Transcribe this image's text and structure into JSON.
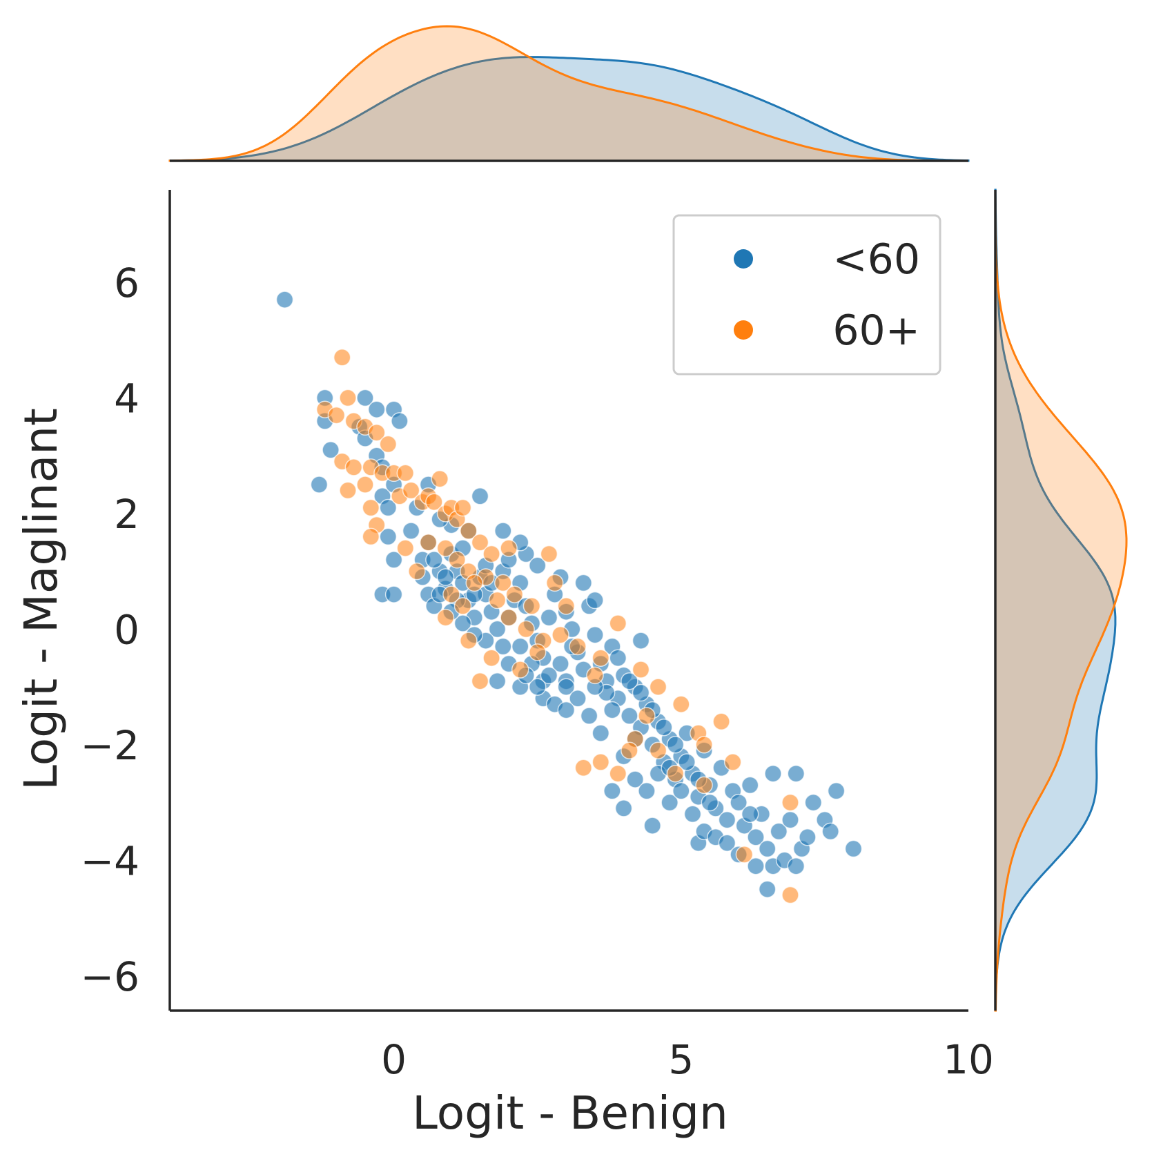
{
  "chart_data": {
    "type": "scatter",
    "subtype": "jointplot",
    "title": "",
    "xlabel": "Logit - Benign",
    "ylabel": "Logit - Maglinant",
    "xlim": [
      -3.9,
      10
    ],
    "ylim": [
      -6.6,
      7.6
    ],
    "xticks": [
      0,
      5,
      10
    ],
    "xtick_labels": [
      "0",
      "5",
      "10"
    ],
    "yticks": [
      6,
      4,
      2,
      0,
      -2,
      -4,
      -6
    ],
    "ytick_labels": [
      "6",
      "4",
      "2",
      "0",
      "−2",
      "−4",
      "−6"
    ],
    "grid": false,
    "legend": {
      "placement": "top-right",
      "entries": [
        "<60",
        "60+"
      ]
    },
    "marginal_x": "kde",
    "marginal_y": "kde",
    "series": [
      {
        "name": "<60",
        "color": "#1f77b4",
        "alpha": 0.6,
        "points": [
          [
            -1.9,
            5.7
          ],
          [
            -1.2,
            4.0
          ],
          [
            -1.2,
            3.6
          ],
          [
            -1.1,
            3.1
          ],
          [
            -1.3,
            2.5
          ],
          [
            -0.5,
            4.0
          ],
          [
            -0.3,
            3.8
          ],
          [
            0.0,
            3.8
          ],
          [
            0.1,
            3.6
          ],
          [
            -0.6,
            3.5
          ],
          [
            -0.5,
            3.3
          ],
          [
            -0.3,
            3.0
          ],
          [
            -0.2,
            2.8
          ],
          [
            -0.2,
            2.3
          ],
          [
            -0.1,
            2.1
          ],
          [
            0.0,
            2.5
          ],
          [
            -0.1,
            1.6
          ],
          [
            0.0,
            1.2
          ],
          [
            -0.2,
            0.6
          ],
          [
            0.0,
            0.6
          ],
          [
            0.3,
            1.7
          ],
          [
            0.4,
            2.1
          ],
          [
            0.6,
            2.5
          ],
          [
            1.5,
            2.3
          ],
          [
            1.9,
            1.7
          ],
          [
            2.3,
            1.3
          ],
          [
            0.5,
            1.2
          ],
          [
            0.5,
            0.9
          ],
          [
            0.6,
            0.6
          ],
          [
            0.7,
            0.4
          ],
          [
            0.8,
            1.0
          ],
          [
            0.9,
            0.7
          ],
          [
            1.0,
            1.3
          ],
          [
            1.1,
            1.0
          ],
          [
            1.2,
            0.8
          ],
          [
            1.3,
            0.5
          ],
          [
            1.4,
            0.2
          ],
          [
            1.1,
            0.5
          ],
          [
            1.2,
            1.4
          ],
          [
            1.3,
            1.7
          ],
          [
            1.0,
            1.8
          ],
          [
            0.8,
            1.9
          ],
          [
            0.6,
            1.5
          ],
          [
            0.7,
            1.2
          ],
          [
            0.9,
            0.9
          ],
          [
            1.5,
            0.9
          ],
          [
            1.6,
            0.6
          ],
          [
            1.7,
            0.3
          ],
          [
            1.8,
            0.0
          ],
          [
            1.9,
            -0.3
          ],
          [
            2.0,
            0.2
          ],
          [
            2.1,
            0.5
          ],
          [
            2.2,
            0.8
          ],
          [
            2.3,
            0.4
          ],
          [
            2.4,
            0.1
          ],
          [
            2.5,
            -0.2
          ],
          [
            2.6,
            -0.5
          ],
          [
            2.7,
            0.2
          ],
          [
            2.8,
            0.6
          ],
          [
            2.9,
            0.9
          ],
          [
            3.0,
            0.3
          ],
          [
            3.1,
            0.0
          ],
          [
            3.2,
            -0.4
          ],
          [
            3.3,
            -0.7
          ],
          [
            3.4,
            0.4
          ],
          [
            3.5,
            -0.1
          ],
          [
            3.6,
            -0.6
          ],
          [
            3.7,
            -0.9
          ],
          [
            3.8,
            -0.3
          ],
          [
            3.9,
            -1.2
          ],
          [
            4.0,
            -0.8
          ],
          [
            4.1,
            -1.5
          ],
          [
            4.2,
            -1.0
          ],
          [
            4.3,
            -1.7
          ],
          [
            4.4,
            -1.3
          ],
          [
            4.5,
            -2.0
          ],
          [
            4.6,
            -1.6
          ],
          [
            4.7,
            -2.3
          ],
          [
            4.8,
            -1.9
          ],
          [
            4.9,
            -2.6
          ],
          [
            5.0,
            -2.2
          ],
          [
            5.1,
            -1.8
          ],
          [
            5.2,
            -2.5
          ],
          [
            5.3,
            -2.9
          ],
          [
            5.4,
            -2.1
          ],
          [
            5.5,
            -2.7
          ],
          [
            5.6,
            -3.1
          ],
          [
            5.7,
            -2.4
          ],
          [
            5.8,
            -3.3
          ],
          [
            5.9,
            -2.8
          ],
          [
            6.0,
            -3.0
          ],
          [
            6.1,
            -3.4
          ],
          [
            6.2,
            -2.7
          ],
          [
            6.3,
            -3.6
          ],
          [
            6.4,
            -3.2
          ],
          [
            6.5,
            -3.8
          ],
          [
            6.6,
            -4.1
          ],
          [
            6.7,
            -3.5
          ],
          [
            6.8,
            -4.0
          ],
          [
            6.9,
            -3.3
          ],
          [
            7.0,
            -4.1
          ],
          [
            7.1,
            -3.8
          ],
          [
            7.2,
            -3.6
          ],
          [
            7.3,
            -3.0
          ],
          [
            7.5,
            -3.3
          ],
          [
            7.6,
            -3.5
          ],
          [
            7.7,
            -2.8
          ],
          [
            8.0,
            -3.8
          ],
          [
            6.5,
            -4.5
          ],
          [
            6.3,
            -4.1
          ],
          [
            7.0,
            -2.5
          ],
          [
            6.6,
            -2.5
          ],
          [
            5.3,
            -3.7
          ],
          [
            4.5,
            -3.4
          ],
          [
            4.0,
            -3.1
          ],
          [
            3.8,
            -2.8
          ],
          [
            4.3,
            -0.2
          ],
          [
            3.0,
            -0.9
          ],
          [
            2.6,
            -1.2
          ],
          [
            2.2,
            -1.0
          ],
          [
            2.0,
            -0.6
          ],
          [
            1.8,
            -0.9
          ],
          [
            1.6,
            -0.2
          ],
          [
            1.4,
            0.6
          ],
          [
            1.6,
            1.1
          ],
          [
            1.9,
            1.0
          ],
          [
            2.2,
            -0.3
          ],
          [
            2.4,
            -0.6
          ],
          [
            2.6,
            -0.9
          ],
          [
            2.8,
            -1.3
          ],
          [
            3.0,
            -1.0
          ],
          [
            3.2,
            -1.2
          ],
          [
            3.4,
            -1.5
          ],
          [
            3.6,
            -1.8
          ],
          [
            3.8,
            -1.4
          ],
          [
            4.0,
            -2.2
          ],
          [
            4.2,
            -2.6
          ],
          [
            4.4,
            -2.8
          ],
          [
            4.6,
            -2.5
          ],
          [
            4.8,
            -3.0
          ],
          [
            5.0,
            -2.8
          ],
          [
            5.2,
            -3.2
          ],
          [
            5.4,
            -3.5
          ],
          [
            5.6,
            -3.6
          ],
          [
            5.8,
            -3.7
          ],
          [
            6.0,
            -3.9
          ],
          [
            3.3,
            0.8
          ],
          [
            3.5,
            0.5
          ],
          [
            3.1,
            -0.3
          ],
          [
            2.9,
            -0.6
          ],
          [
            2.7,
            -0.8
          ],
          [
            2.5,
            -1.0
          ],
          [
            3.9,
            -0.5
          ],
          [
            4.1,
            -0.9
          ],
          [
            4.3,
            -1.1
          ],
          [
            4.5,
            -1.4
          ],
          [
            4.7,
            -1.7
          ],
          [
            4.9,
            -2.0
          ],
          [
            5.1,
            -2.3
          ],
          [
            5.3,
            -2.6
          ],
          [
            1.2,
            0.1
          ],
          [
            1.4,
            -0.1
          ],
          [
            1.7,
            0.8
          ],
          [
            2.0,
            1.2
          ],
          [
            2.2,
            1.5
          ],
          [
            2.5,
            1.1
          ],
          [
            1.0,
            0.3
          ],
          [
            0.8,
            0.6
          ],
          [
            2.3,
            -0.8
          ],
          [
            3.7,
            -1.1
          ],
          [
            4.8,
            -2.4
          ],
          [
            5.5,
            -3.0
          ],
          [
            6.2,
            -3.2
          ],
          [
            3.5,
            -1.0
          ],
          [
            3.0,
            -1.4
          ],
          [
            4.2,
            -1.9
          ]
        ]
      },
      {
        "name": "60+",
        "color": "#ff7f0e",
        "alpha": 0.55,
        "points": [
          [
            -0.9,
            4.7
          ],
          [
            -1.2,
            3.8
          ],
          [
            -1.0,
            3.7
          ],
          [
            -0.8,
            4.0
          ],
          [
            -0.7,
            3.6
          ],
          [
            -0.5,
            3.5
          ],
          [
            -0.3,
            3.4
          ],
          [
            -0.1,
            3.2
          ],
          [
            -0.9,
            2.9
          ],
          [
            -0.7,
            2.8
          ],
          [
            -0.4,
            2.8
          ],
          [
            -0.2,
            2.7
          ],
          [
            0.0,
            2.7
          ],
          [
            0.2,
            2.7
          ],
          [
            -0.8,
            2.4
          ],
          [
            -0.5,
            2.5
          ],
          [
            -0.4,
            2.1
          ],
          [
            -0.3,
            1.8
          ],
          [
            -0.4,
            1.6
          ],
          [
            0.1,
            2.3
          ],
          [
            0.3,
            2.4
          ],
          [
            0.5,
            2.2
          ],
          [
            0.6,
            2.3
          ],
          [
            0.7,
            2.2
          ],
          [
            0.8,
            2.6
          ],
          [
            0.9,
            2.0
          ],
          [
            1.0,
            2.1
          ],
          [
            1.1,
            1.9
          ],
          [
            1.3,
            1.7
          ],
          [
            1.5,
            1.5
          ],
          [
            1.7,
            1.3
          ],
          [
            0.2,
            1.4
          ],
          [
            0.4,
            1.0
          ],
          [
            0.6,
            1.5
          ],
          [
            0.9,
            1.4
          ],
          [
            1.1,
            1.2
          ],
          [
            1.3,
            1.0
          ],
          [
            1.6,
            0.9
          ],
          [
            1.9,
            0.8
          ],
          [
            2.1,
            0.6
          ],
          [
            2.4,
            0.4
          ],
          [
            1.0,
            0.6
          ],
          [
            1.2,
            0.4
          ],
          [
            1.4,
            0.8
          ],
          [
            1.8,
            0.5
          ],
          [
            2.0,
            0.2
          ],
          [
            2.3,
            0.0
          ],
          [
            2.6,
            -0.2
          ],
          [
            0.9,
            0.2
          ],
          [
            1.5,
            -0.9
          ],
          [
            1.3,
            -0.2
          ],
          [
            1.7,
            -0.5
          ],
          [
            2.2,
            -0.7
          ],
          [
            2.5,
            -0.4
          ],
          [
            2.9,
            -0.1
          ],
          [
            3.2,
            -0.3
          ],
          [
            3.6,
            -0.5
          ],
          [
            3.9,
            0.1
          ],
          [
            4.3,
            -0.7
          ],
          [
            4.6,
            -1.0
          ],
          [
            5.0,
            -1.3
          ],
          [
            5.3,
            -1.8
          ],
          [
            5.4,
            -2.0
          ],
          [
            5.7,
            -1.6
          ],
          [
            5.9,
            -2.3
          ],
          [
            4.4,
            -1.5
          ],
          [
            4.6,
            -2.1
          ],
          [
            4.2,
            -1.9
          ],
          [
            4.9,
            -2.5
          ],
          [
            5.4,
            -2.7
          ],
          [
            4.1,
            -2.1
          ],
          [
            3.6,
            -2.3
          ],
          [
            3.9,
            -2.5
          ],
          [
            3.3,
            -2.4
          ],
          [
            6.9,
            -3.0
          ],
          [
            6.9,
            -4.6
          ],
          [
            6.1,
            -3.9
          ],
          [
            2.8,
            0.8
          ],
          [
            3.0,
            0.4
          ],
          [
            3.5,
            -0.8
          ],
          [
            2.7,
            1.3
          ],
          [
            2.0,
            1.4
          ],
          [
            1.2,
            2.1
          ]
        ]
      }
    ]
  }
}
